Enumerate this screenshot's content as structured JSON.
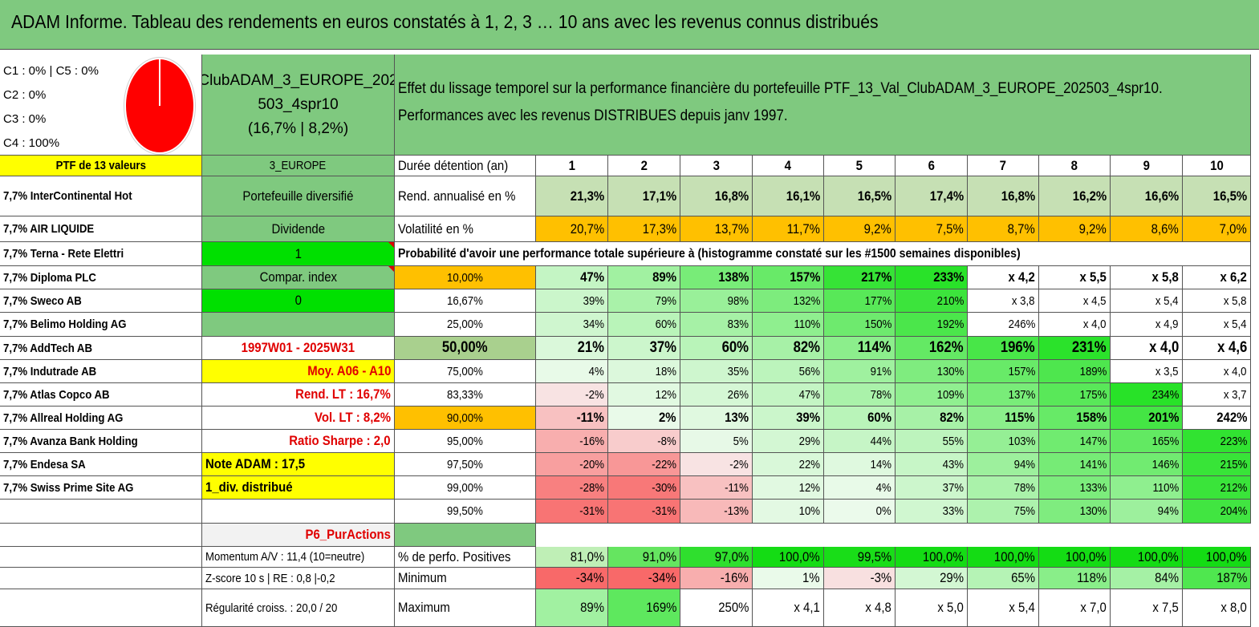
{
  "title": "ADAM Informe. Tableau des rendements en euros constatés à 1, 2, 3 … 10 ans avec les revenus connus distribués",
  "allocation": {
    "line1": "C1 : 0% | C5 : 0%",
    "line2": "C2 : 0%",
    "line3": "C3 : 0%",
    "line4": "C4 : 100%",
    "pie_color": "#ff0000"
  },
  "portfolio": {
    "name_line1": "ClubADAM_3_EUROPE_202",
    "name_line2": "503_4spr10",
    "name_line3": "(16,7% | 8,2%)",
    "effect_line1": "Effet du lissage temporel sur la performance financière du portefeuille PTF_13_Val_ClubADAM_3_EUROPE_202503_4spr10.",
    "effect_line2": "Performances avec les revenus DISTRIBUES depuis janv 1997.",
    "count_label": "PTF de 13 valeurs",
    "zone": "3_EUROPE"
  },
  "header": {
    "duration_label": "Durée détention (an)",
    "years": [
      "1",
      "2",
      "3",
      "4",
      "5",
      "6",
      "7",
      "8",
      "9",
      "10"
    ]
  },
  "holdings": [
    "7,7% InterContinental Hot",
    "7,7% AIR LIQUIDE",
    "7,7% Terna - Rete Elettri",
    "7,7% Diploma PLC",
    "7,7% Sweco AB",
    "7,7% Belimo Holding AG",
    "7,7% AddTech AB",
    "7,7% Indutrade AB",
    "7,7% Atlas Copco AB",
    "7,7% Allreal Holding AG",
    "7,7% Avanza Bank Holding",
    "7,7% Endesa SA",
    "7,7% Swiss Prime Site AG"
  ],
  "info": {
    "diversified": "Portefeuille diversifié",
    "dividend": "Dividende",
    "dividend_value": "1",
    "compar_index": "Compar. index",
    "compar_index_value": "0",
    "period": "1997W01 - 2025W31",
    "avg": "Moy. A06 - A10",
    "rend_lt": "Rend. LT : 16,7%",
    "vol_lt": "Vol. LT : 8,2%",
    "sharpe": "Ratio Sharpe : 2,0",
    "note": "Note ADAM : 17,5",
    "div_distrib": "1_div. distribué",
    "p6": "P6_PurActions",
    "momentum": "Momentum A/V : 11,4 (10=neutre)",
    "zscore": "Z-score 10 s | RE : 0,8 |-0,2",
    "regularite": "Régularité croiss. : 20,0 / 20"
  },
  "returns": {
    "label": "Rend. annualisé en %",
    "values": [
      "21,3%",
      "17,1%",
      "16,8%",
      "16,1%",
      "16,5%",
      "17,4%",
      "16,8%",
      "16,2%",
      "16,6%",
      "16,5%"
    ]
  },
  "volatility": {
    "label": "Volatilité en %",
    "values": [
      "20,7%",
      "17,3%",
      "13,7%",
      "11,7%",
      "9,2%",
      "7,5%",
      "8,7%",
      "9,2%",
      "8,6%",
      "7,0%"
    ]
  },
  "probability_title": "Probabilité d'avoir une performance totale supérieure à (histogramme constaté sur les #1500 semaines disponibles)",
  "percentiles": [
    {
      "p": "10,00%",
      "v": [
        "47%",
        "89%",
        "138%",
        "157%",
        "217%",
        "233%",
        "x 4,2",
        "x 5,5",
        "x 5,8",
        "x 6,2"
      ]
    },
    {
      "p": "16,67%",
      "v": [
        "39%",
        "79%",
        "98%",
        "132%",
        "177%",
        "210%",
        "x 3,8",
        "x 4,5",
        "x 5,4",
        "x 5,8"
      ]
    },
    {
      "p": "25,00%",
      "v": [
        "34%",
        "60%",
        "83%",
        "110%",
        "150%",
        "192%",
        "246%",
        "x 4,0",
        "x 4,9",
        "x 5,4"
      ]
    },
    {
      "p": "50,00%",
      "v": [
        "21%",
        "37%",
        "60%",
        "82%",
        "114%",
        "162%",
        "196%",
        "231%",
        "x 4,0",
        "x 4,6"
      ]
    },
    {
      "p": "75,00%",
      "v": [
        "4%",
        "18%",
        "35%",
        "56%",
        "91%",
        "130%",
        "157%",
        "189%",
        "x 3,5",
        "x 4,0"
      ]
    },
    {
      "p": "83,33%",
      "v": [
        "-2%",
        "12%",
        "26%",
        "47%",
        "78%",
        "109%",
        "137%",
        "175%",
        "234%",
        "x 3,7"
      ]
    },
    {
      "p": "90,00%",
      "v": [
        "-11%",
        "2%",
        "13%",
        "39%",
        "60%",
        "82%",
        "115%",
        "158%",
        "201%",
        "242%"
      ]
    },
    {
      "p": "95,00%",
      "v": [
        "-16%",
        "-8%",
        "5%",
        "29%",
        "44%",
        "55%",
        "103%",
        "147%",
        "165%",
        "223%"
      ]
    },
    {
      "p": "97,50%",
      "v": [
        "-20%",
        "-22%",
        "-2%",
        "22%",
        "14%",
        "43%",
        "94%",
        "141%",
        "146%",
        "215%"
      ]
    },
    {
      "p": "99,00%",
      "v": [
        "-28%",
        "-30%",
        "-11%",
        "12%",
        "4%",
        "37%",
        "78%",
        "133%",
        "110%",
        "212%"
      ]
    },
    {
      "p": "99,50%",
      "v": [
        "-31%",
        "-31%",
        "-13%",
        "10%",
        "0%",
        "33%",
        "75%",
        "130%",
        "94%",
        "204%"
      ]
    }
  ],
  "positive": {
    "label": "% de perfo. Positives",
    "values": [
      "81,0%",
      "91,0%",
      "97,0%",
      "100,0%",
      "99,5%",
      "100,0%",
      "100,0%",
      "100,0%",
      "100,0%",
      "100,0%"
    ]
  },
  "minimum": {
    "label": "Minimum",
    "values": [
      "-34%",
      "-34%",
      "-16%",
      "1%",
      "-3%",
      "29%",
      "65%",
      "118%",
      "84%",
      "187%"
    ]
  },
  "maximum": {
    "label": "Maximum",
    "values": [
      "89%",
      "169%",
      "250%",
      "x 4,1",
      "x 4,8",
      "x 5,0",
      "x 5,4",
      "x 7,0",
      "x 7,5",
      "x 8,0"
    ]
  },
  "colors": {
    "title_green": "#7fc97f",
    "return_green": "#c6e0b4",
    "volatility_orange": "#ffc000",
    "highlight_yellow": "#ffff00",
    "bright_green": "#00e000",
    "negative_red": "#f8696b"
  }
}
